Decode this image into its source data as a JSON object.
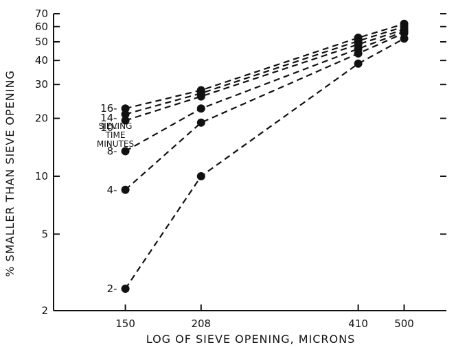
{
  "chart_data": {
    "type": "line",
    "title": "",
    "xlabel": "LOG OF SIEVE OPENING, MICRONS",
    "ylabel": "% SMALLER THAN SIEVE OPENING",
    "xscale": "log",
    "yscale": "log",
    "xlim": [
      110,
      600
    ],
    "ylim": [
      2,
      70
    ],
    "x": [
      150,
      208,
      410,
      500
    ],
    "x_tick_labels": [
      "150",
      "208",
      "410",
      "500"
    ],
    "y_ticks": [
      2,
      5,
      10,
      20,
      30,
      40,
      50,
      60,
      70
    ],
    "y_tick_labels": [
      "2",
      "5",
      "10",
      "20",
      "30",
      "40",
      "50",
      "60",
      "70"
    ],
    "grid": false,
    "line_style": "dashed",
    "marker": "filled-circle",
    "legend_title": [
      "SIEVING",
      "TIME",
      "MINUTES"
    ],
    "series": [
      {
        "name": "16-",
        "values": [
          22.5,
          28.0,
          52.5,
          62.0
        ]
      },
      {
        "name": "14-",
        "values": [
          21.0,
          27.0,
          50.5,
          60.0
        ]
      },
      {
        "name": "10-",
        "values": [
          19.5,
          26.0,
          48.5,
          58.0
        ]
      },
      {
        "name": "8-",
        "values": [
          13.5,
          22.5,
          46.0,
          56.5
        ]
      },
      {
        "name": "4-",
        "values": [
          8.5,
          19.0,
          43.5,
          55.5
        ]
      },
      {
        "name": "2-",
        "values": [
          2.6,
          10.0,
          38.5,
          52.0
        ]
      }
    ]
  }
}
